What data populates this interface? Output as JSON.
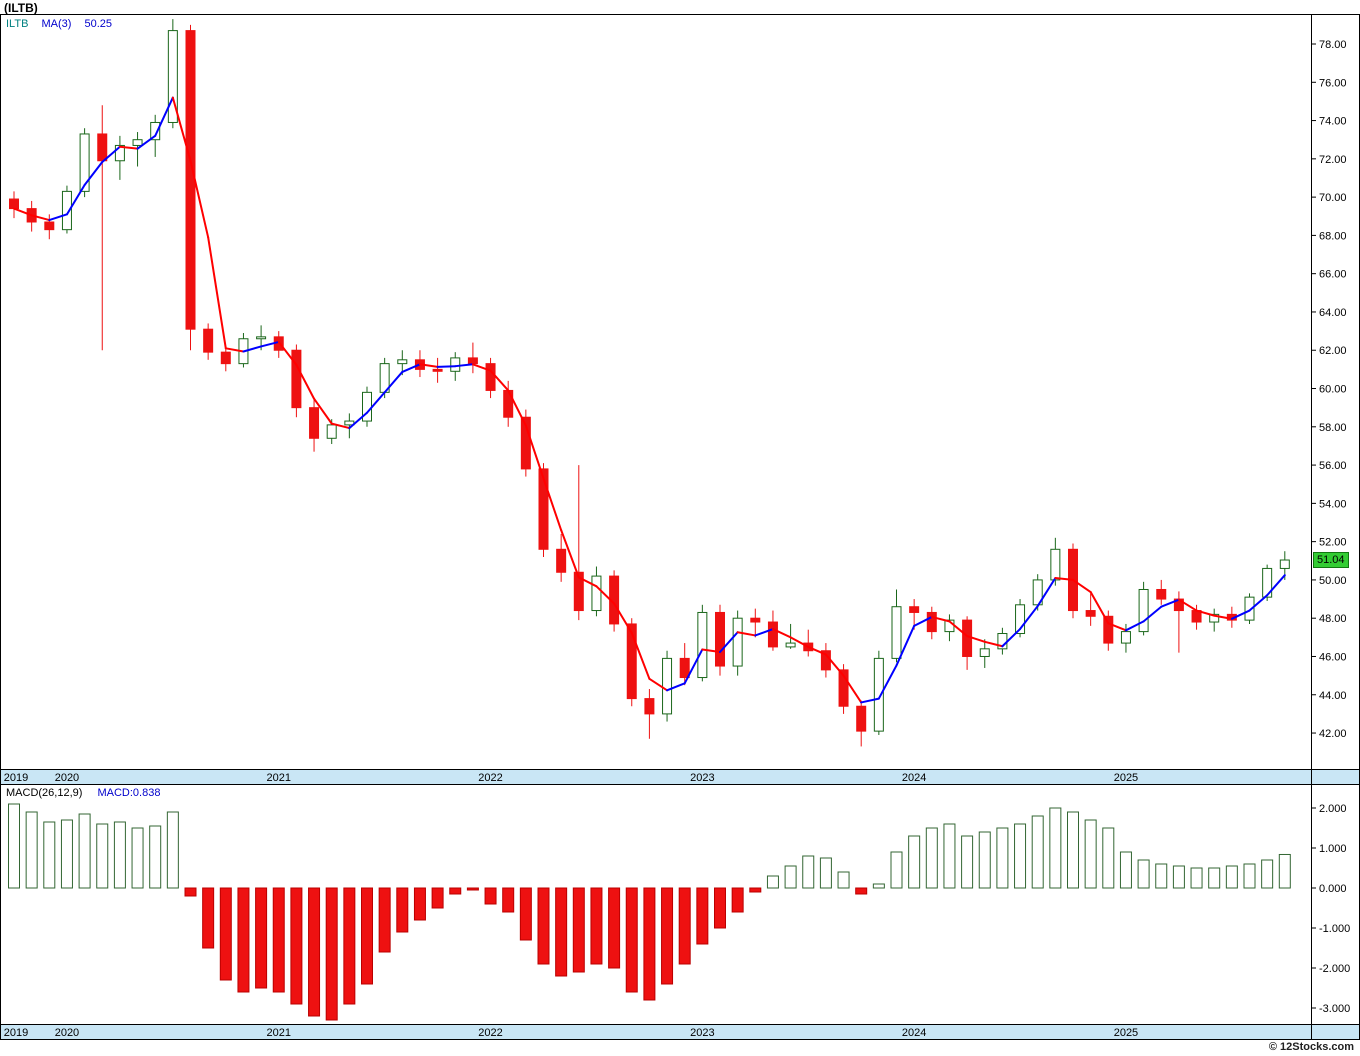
{
  "header": {
    "symbol_title": "(ILTB)"
  },
  "main_legend": {
    "symbol": "ILTB",
    "ma_label": "MA(3)",
    "ma_value": "50.25"
  },
  "macd_legend": {
    "label": "MACD(26,12,9)",
    "value": "MACD:0.838"
  },
  "footer": {
    "credit": "© 12Stocks.com"
  },
  "last_price_tag": {
    "label": "51.04",
    "bg": "#33cc33",
    "text_color": "#000000"
  },
  "colors": {
    "up_outline": "#1a661a",
    "up_fill": "#ffffff",
    "down_body": "#ee1111",
    "band_bg": "#c9e6f5",
    "frame": "#000000",
    "axis_text": "#000000",
    "macd_pos_outline": "#336633",
    "macd_pos_fill": "#ffffff",
    "macd_neg_outline": "#bb0000"
  },
  "chart_data": [
    {
      "type": "candlestick",
      "title": "ILTB monthly price with MA(3)",
      "legend": [
        "ILTB",
        "MA(3)",
        "50.25"
      ],
      "price_axis": {
        "max": 78,
        "min": 42,
        "step": 2,
        "format": "0.00"
      },
      "ylim": [
        41,
        80
      ],
      "grid": false,
      "last_price": 51.04,
      "ma": {
        "period": 3,
        "current_value": 50.25,
        "up_color": "#0000ff",
        "down_color": "#ff0000"
      },
      "year_labels": [
        {
          "label": "2019",
          "candle_index": 0
        },
        {
          "label": "2020",
          "candle_index": 3
        },
        {
          "label": "2021",
          "candle_index": 15
        },
        {
          "label": "2022",
          "candle_index": 27
        },
        {
          "label": "2023",
          "candle_index": 39
        },
        {
          "label": "2024",
          "candle_index": 51
        },
        {
          "label": "2025",
          "candle_index": 63
        }
      ],
      "candles": [
        [
          "2019-10",
          69.9,
          70.3,
          68.9,
          69.4
        ],
        [
          "2019-11",
          69.4,
          69.8,
          68.2,
          68.7
        ],
        [
          "2019-12",
          68.7,
          69.1,
          67.8,
          68.3
        ],
        [
          "2020-01",
          68.3,
          70.6,
          68.1,
          70.3
        ],
        [
          "2020-02",
          70.3,
          73.6,
          70.0,
          73.3
        ],
        [
          "2020-03",
          73.3,
          74.8,
          62.0,
          71.9
        ],
        [
          "2020-04",
          71.9,
          73.2,
          70.9,
          72.7
        ],
        [
          "2020-05",
          72.7,
          73.4,
          71.6,
          73.0
        ],
        [
          "2020-06",
          73.0,
          74.3,
          72.1,
          73.9
        ],
        [
          "2020-07",
          73.9,
          79.3,
          73.6,
          78.7
        ],
        [
          "2020-08",
          78.7,
          79.0,
          62.0,
          63.1
        ],
        [
          "2020-09",
          63.1,
          63.4,
          61.5,
          61.9
        ],
        [
          "2020-10",
          61.9,
          62.2,
          60.9,
          61.3
        ],
        [
          "2020-11",
          61.3,
          62.9,
          61.1,
          62.6
        ],
        [
          "2020-12",
          62.6,
          63.3,
          62.0,
          62.7
        ],
        [
          "2021-01",
          62.7,
          63.0,
          61.6,
          62.0
        ],
        [
          "2021-02",
          62.0,
          62.3,
          58.5,
          59.0
        ],
        [
          "2021-03",
          59.0,
          59.4,
          56.7,
          57.4
        ],
        [
          "2021-04",
          57.4,
          58.4,
          57.1,
          58.1
        ],
        [
          "2021-05",
          58.1,
          58.7,
          57.4,
          58.3
        ],
        [
          "2021-06",
          58.3,
          60.1,
          58.0,
          59.8
        ],
        [
          "2021-07",
          59.8,
          61.6,
          59.5,
          61.3
        ],
        [
          "2021-08",
          61.3,
          62.0,
          60.7,
          61.5
        ],
        [
          "2021-09",
          61.5,
          62.0,
          60.6,
          61.0
        ],
        [
          "2021-10",
          61.0,
          61.6,
          60.3,
          60.9
        ],
        [
          "2021-11",
          60.9,
          61.9,
          60.4,
          61.6
        ],
        [
          "2021-12",
          61.6,
          62.4,
          60.8,
          61.3
        ],
        [
          "2022-01",
          61.3,
          61.6,
          59.5,
          59.9
        ],
        [
          "2022-02",
          59.9,
          60.4,
          58.0,
          58.5
        ],
        [
          "2022-03",
          58.5,
          58.9,
          55.4,
          55.8
        ],
        [
          "2022-04",
          55.8,
          56.1,
          51.2,
          51.6
        ],
        [
          "2022-05",
          51.6,
          52.4,
          49.9,
          50.4
        ],
        [
          "2022-06",
          50.4,
          56.0,
          47.9,
          48.4
        ],
        [
          "2022-07",
          48.4,
          50.7,
          48.1,
          50.2
        ],
        [
          "2022-08",
          50.2,
          50.5,
          47.3,
          47.7
        ],
        [
          "2022-09",
          47.7,
          48.0,
          43.4,
          43.8
        ],
        [
          "2022-10",
          43.8,
          44.3,
          41.7,
          43.0
        ],
        [
          "2022-11",
          43.0,
          46.3,
          42.6,
          45.9
        ],
        [
          "2022-12",
          45.9,
          46.7,
          44.5,
          44.9
        ],
        [
          "2023-01",
          44.9,
          48.7,
          44.7,
          48.3
        ],
        [
          "2023-02",
          48.3,
          48.7,
          45.0,
          45.5
        ],
        [
          "2023-03",
          45.5,
          48.4,
          45.0,
          48.0
        ],
        [
          "2023-04",
          48.0,
          48.5,
          47.0,
          47.8
        ],
        [
          "2023-05",
          47.8,
          48.4,
          46.3,
          46.5
        ],
        [
          "2023-06",
          46.5,
          47.7,
          46.4,
          46.7
        ],
        [
          "2023-07",
          46.7,
          47.4,
          46.0,
          46.3
        ],
        [
          "2023-08",
          46.3,
          46.7,
          44.9,
          45.3
        ],
        [
          "2023-09",
          45.3,
          45.6,
          43.0,
          43.4
        ],
        [
          "2023-10",
          43.4,
          43.7,
          41.3,
          42.1
        ],
        [
          "2023-11",
          42.1,
          46.3,
          41.9,
          45.9
        ],
        [
          "2023-12",
          45.9,
          49.5,
          45.7,
          48.6
        ],
        [
          "2024-01",
          48.6,
          49.0,
          47.4,
          48.3
        ],
        [
          "2024-02",
          48.3,
          48.6,
          46.9,
          47.3
        ],
        [
          "2024-03",
          47.3,
          48.2,
          46.8,
          47.9
        ],
        [
          "2024-04",
          47.9,
          48.1,
          45.3,
          46.0
        ],
        [
          "2024-05",
          46.0,
          46.9,
          45.4,
          46.4
        ],
        [
          "2024-06",
          46.4,
          47.5,
          46.1,
          47.2
        ],
        [
          "2024-07",
          47.2,
          49.0,
          47.0,
          48.7
        ],
        [
          "2024-08",
          48.7,
          50.3,
          48.4,
          50.0
        ],
        [
          "2024-09",
          50.0,
          52.2,
          49.7,
          51.6
        ],
        [
          "2024-10",
          51.6,
          51.9,
          48.0,
          48.4
        ],
        [
          "2024-11",
          48.4,
          49.3,
          47.6,
          48.1
        ],
        [
          "2024-12",
          48.1,
          48.4,
          46.3,
          46.7
        ],
        [
          "2025-01",
          46.7,
          47.7,
          46.2,
          47.3
        ],
        [
          "2025-02",
          47.3,
          49.9,
          47.1,
          49.5
        ],
        [
          "2025-03",
          49.5,
          50.0,
          48.7,
          49.0
        ],
        [
          "2025-04",
          49.0,
          49.4,
          46.2,
          48.4
        ],
        [
          "2025-05",
          48.4,
          48.7,
          47.4,
          47.8
        ],
        [
          "2025-06",
          47.8,
          48.5,
          47.3,
          48.2
        ],
        [
          "2025-07",
          48.2,
          48.6,
          47.5,
          47.9
        ],
        [
          "2025-08",
          47.9,
          49.3,
          47.7,
          49.1
        ],
        [
          "2025-09",
          49.1,
          50.8,
          48.9,
          50.6
        ],
        [
          "2025-10",
          50.6,
          51.5,
          50.0,
          51.04
        ]
      ]
    },
    {
      "type": "bar",
      "title": "MACD(26,12,9)",
      "current_value": 0.838,
      "axis_ticks": [
        2,
        1,
        0,
        -1,
        -2,
        -3
      ],
      "axis_format": "0.000",
      "grid": false,
      "values": [
        2.1,
        1.9,
        1.65,
        1.7,
        1.85,
        1.6,
        1.65,
        1.5,
        1.55,
        1.9,
        -0.2,
        -1.5,
        -2.3,
        -2.6,
        -2.5,
        -2.6,
        -2.9,
        -3.2,
        -3.3,
        -2.9,
        -2.4,
        -1.6,
        -1.1,
        -0.8,
        -0.5,
        -0.15,
        -0.05,
        -0.4,
        -0.6,
        -1.3,
        -1.9,
        -2.2,
        -2.1,
        -1.9,
        -2.0,
        -2.6,
        -2.8,
        -2.4,
        -1.9,
        -1.4,
        -1.0,
        -0.6,
        -0.1,
        0.3,
        0.55,
        0.8,
        0.75,
        0.4,
        -0.15,
        0.1,
        0.9,
        1.3,
        1.5,
        1.6,
        1.3,
        1.4,
        1.5,
        1.6,
        1.8,
        2.0,
        1.9,
        1.7,
        1.5,
        0.9,
        0.7,
        0.6,
        0.55,
        0.5,
        0.5,
        0.55,
        0.6,
        0.7,
        0.838
      ]
    }
  ]
}
